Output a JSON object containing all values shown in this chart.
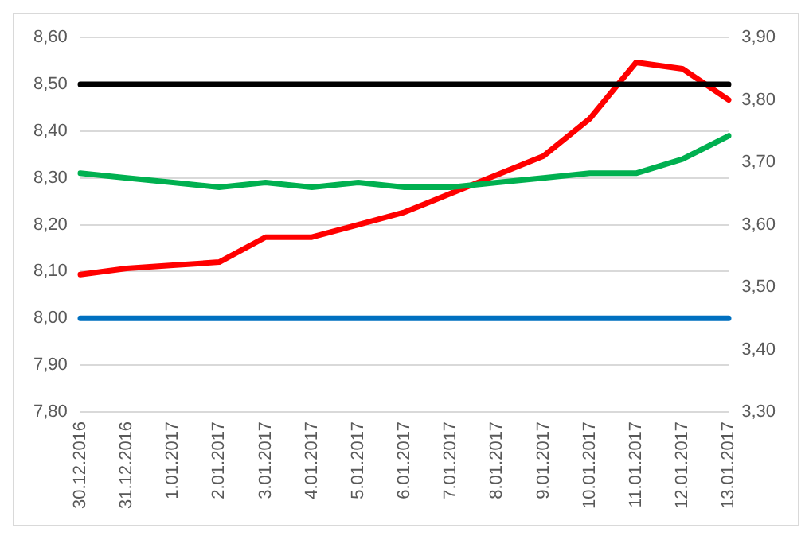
{
  "chart_data": {
    "type": "line",
    "categories": [
      "30.12.2016",
      "31.12.2016",
      "1.01.2017",
      "2.01.2017",
      "3.01.2017",
      "4.01.2017",
      "5.01.2017",
      "6.01.2017",
      "7.01.2017",
      "8.01.2017",
      "9.01.2017",
      "10.01.2017",
      "11.01.2017",
      "12.01.2017",
      "13.01.2017"
    ],
    "series": [
      {
        "color": "#000000",
        "values": [
          8.5,
          8.5,
          8.5,
          8.5,
          8.5,
          8.5,
          8.5,
          8.5,
          8.5,
          8.5,
          8.5,
          8.5,
          8.5,
          8.5,
          8.5
        ]
      },
      {
        "color": "#0070c0",
        "values": [
          8.0,
          8.0,
          8.0,
          8.0,
          8.0,
          8.0,
          8.0,
          8.0,
          8.0,
          8.0,
          8.0,
          8.0,
          8.0,
          8.0,
          8.0
        ]
      },
      {
        "color": "#00b050",
        "values": [
          8.31,
          8.3,
          8.29,
          8.28,
          8.29,
          8.28,
          8.29,
          8.28,
          8.28,
          8.29,
          8.3,
          8.31,
          8.31,
          8.34,
          8.39
        ]
      },
      {
        "color": "#ff0000",
        "axis": "y2",
        "values": [
          3.52,
          3.53,
          3.535,
          3.54,
          3.58,
          3.58,
          3.6,
          3.62,
          3.65,
          3.68,
          3.71,
          3.77,
          3.86,
          3.85,
          3.8
        ]
      }
    ],
    "ylim": [
      7.8,
      8.6
    ],
    "yticks": [
      {
        "value": 7.8,
        "label": "7,80"
      },
      {
        "value": 7.9,
        "label": "7,90"
      },
      {
        "value": 8.0,
        "label": "8,00"
      },
      {
        "value": 8.1,
        "label": "8,10"
      },
      {
        "value": 8.2,
        "label": "8,20"
      },
      {
        "value": 8.3,
        "label": "8,30"
      },
      {
        "value": 8.4,
        "label": "8,40"
      },
      {
        "value": 8.5,
        "label": "8,50"
      },
      {
        "value": 8.6,
        "label": "8,60"
      }
    ],
    "y2lim": [
      3.3,
      3.9
    ],
    "y2ticks": [
      {
        "value": 3.3,
        "label": "3,30"
      },
      {
        "value": 3.4,
        "label": "3,40"
      },
      {
        "value": 3.5,
        "label": "3,50"
      },
      {
        "value": 3.6,
        "label": "3,60"
      },
      {
        "value": 3.7,
        "label": "3,70"
      },
      {
        "value": 3.8,
        "label": "3,80"
      },
      {
        "value": 3.9,
        "label": "3,90"
      }
    ],
    "grid": "y",
    "legend": false,
    "marker": "none",
    "line_style": "solid"
  }
}
